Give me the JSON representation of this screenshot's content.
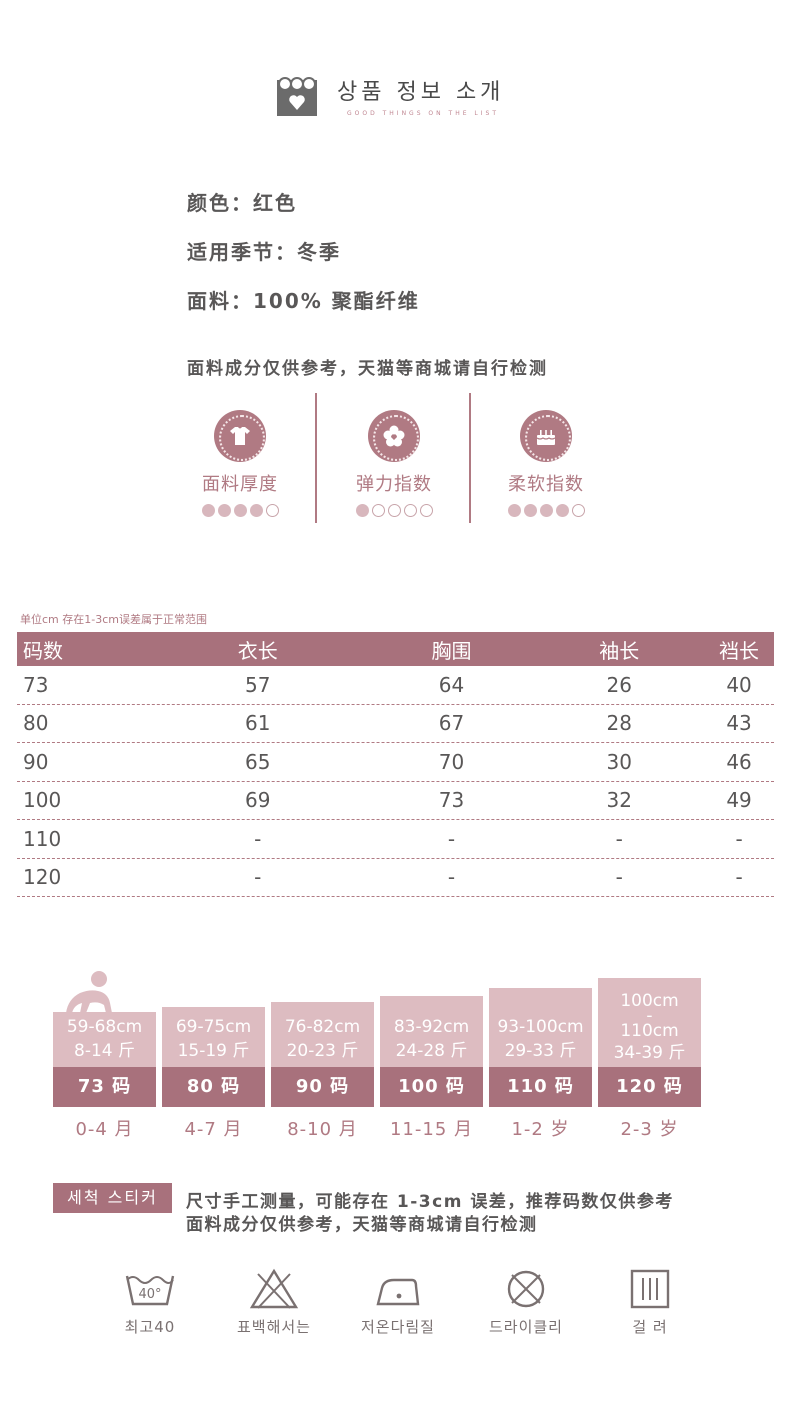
{
  "header": {
    "title": "상품 정보 소개",
    "subtitle": "GOOD THINGS ON THE LIST"
  },
  "info": {
    "color_label": "颜色：",
    "color_value": "红色",
    "season_label": "适用季节：",
    "season_value": "冬季",
    "fabric_label": "面料：",
    "fabric_value": "100% 聚酯纤维",
    "disclaimer": "面料成分仅供参考，天猫等商城请自行检测"
  },
  "features": [
    {
      "label": "面料厚度",
      "icon": "shirt-icon",
      "level": 4,
      "max": 5
    },
    {
      "label": "弹力指数",
      "icon": "flower-icon",
      "level": 1,
      "max": 5
    },
    {
      "label": "柔软指数",
      "icon": "cake-icon",
      "level": 4,
      "max": 5
    }
  ],
  "size_table": {
    "note": "单位cm   存在1-3cm误差属于正常范围",
    "headers": [
      "码数",
      "衣长",
      "胸围",
      "袖长",
      "裆长"
    ],
    "rows": [
      [
        "73",
        "57",
        "64",
        "26",
        "40"
      ],
      [
        "80",
        "61",
        "67",
        "28",
        "43"
      ],
      [
        "90",
        "65",
        "70",
        "30",
        "46"
      ],
      [
        "100",
        "69",
        "73",
        "32",
        "49"
      ],
      [
        "110",
        "-",
        "-",
        "-",
        "-"
      ],
      [
        "120",
        "-",
        "-",
        "-",
        "-"
      ]
    ]
  },
  "size_chart": [
    {
      "height": "59-68cm",
      "weight": "8-14 斤",
      "code": "73 码",
      "age": "0-4 月"
    },
    {
      "height": "69-75cm",
      "weight": "15-19 斤",
      "code": "80 码",
      "age": "4-7 月"
    },
    {
      "height": "76-82cm",
      "weight": "20-23 斤",
      "code": "90 码",
      "age": "8-10 月"
    },
    {
      "height": "83-92cm",
      "weight": "24-28 斤",
      "code": "100 码",
      "age": "11-15 月"
    },
    {
      "height": "93-100cm",
      "weight": "29-33 斤",
      "code": "110 码",
      "age": "1-2 岁"
    },
    {
      "height": "100cm",
      "height2": "110cm",
      "weight": "34-39 斤",
      "code": "120 码",
      "age": "2-3 岁"
    }
  ],
  "tips": {
    "tag": "세척 스티커",
    "line1": "尺寸手工测量，可能存在 1-3cm 误差，推荐码数仅供参考",
    "line2": "面料成分仅供参考，天猫等商城请自行检测"
  },
  "care": [
    {
      "label": "최고40",
      "icon": "wash-40-icon",
      "temp": "40°"
    },
    {
      "label": "표백해서는",
      "icon": "no-bleach-icon"
    },
    {
      "label": "저온다림질",
      "icon": "low-iron-icon"
    },
    {
      "label": "드라이클리",
      "icon": "no-dryclean-icon"
    },
    {
      "label": "걸 려",
      "icon": "hang-dry-icon"
    }
  ],
  "colors": {
    "accent": "#a8717c",
    "accent_light": "#ddbcc1",
    "text": "#595757"
  }
}
